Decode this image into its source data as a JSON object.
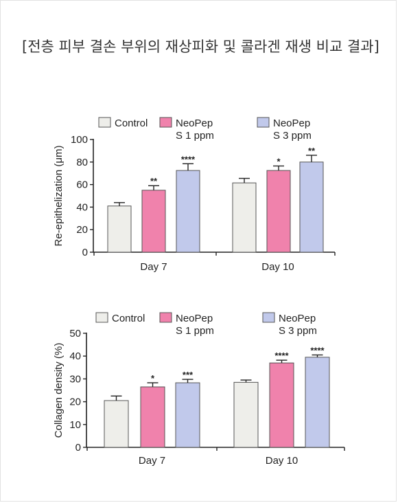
{
  "page": {
    "caption": "[전층 피부 결손 부위의 재상피화 및 콜라겐 재생 비교 결과]"
  },
  "chart_data": [
    {
      "type": "bar",
      "ylabel": "Re-epithelization (μm)",
      "ylim": [
        0,
        100
      ],
      "yticks": [
        0,
        20,
        40,
        60,
        80,
        100
      ],
      "categories": [
        "Day 7",
        "Day 10"
      ],
      "series": [
        {
          "name": "Control",
          "color": "#eeeeea",
          "values": [
            41,
            61.5
          ],
          "errors": [
            3,
            4
          ],
          "significance": [
            "",
            ""
          ]
        },
        {
          "name": "NeoPep S 1 ppm",
          "color": "#f082ac",
          "values": [
            55,
            72.5
          ],
          "errors": [
            4,
            4
          ],
          "significance": [
            "**",
            "*"
          ]
        },
        {
          "name": "NeoPep S 3 ppm",
          "color": "#c1c9eb",
          "values": [
            72.5,
            80
          ],
          "errors": [
            6,
            6
          ],
          "significance": [
            "****",
            "**"
          ]
        }
      ],
      "legend": [
        "Control",
        "NeoPep S 1 ppm",
        "NeoPep S 3 ppm"
      ],
      "legend_placement": "top"
    },
    {
      "type": "bar",
      "ylabel": "Collagen density (%)",
      "ylim": [
        0,
        50
      ],
      "yticks": [
        0,
        10,
        20,
        30,
        40,
        50
      ],
      "categories": [
        "Day 7",
        "Day 10"
      ],
      "series": [
        {
          "name": "Control",
          "color": "#eeeeea",
          "values": [
            20.5,
            28.5
          ],
          "errors": [
            2,
            1
          ],
          "significance": [
            "",
            ""
          ]
        },
        {
          "name": "NeoPep S 1 ppm",
          "color": "#f082ac",
          "values": [
            26.5,
            37
          ],
          "errors": [
            1.8,
            1.2
          ],
          "significance": [
            "*",
            "****"
          ]
        },
        {
          "name": "NeoPep S 3 ppm",
          "color": "#c1c9eb",
          "values": [
            28.3,
            39.5
          ],
          "errors": [
            1.5,
            1
          ],
          "significance": [
            "***",
            "****"
          ]
        }
      ],
      "legend": [
        "Control",
        "NeoPep S 1 ppm",
        "NeoPep S 3 ppm"
      ],
      "legend_placement": "top"
    }
  ]
}
